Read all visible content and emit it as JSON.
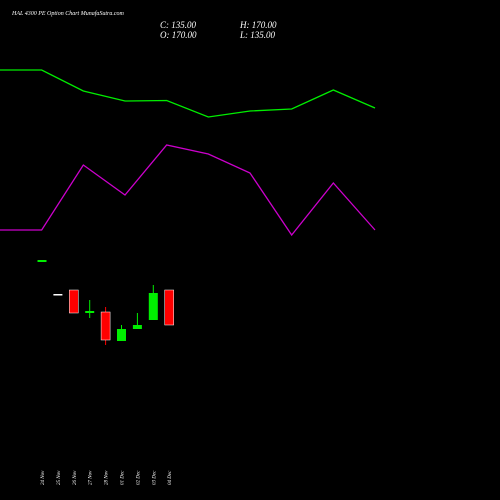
{
  "chart_data": [
    {
      "type": "candlestick",
      "title": "HAL 4300 PE Option Chart MunafaSutra.com",
      "close_label": "C: 135.00",
      "high_label": "H: 170.00",
      "open_label": "O: 170.00",
      "low_label": "L: 135.00",
      "categories": [
        "24 Nov",
        "25 Nov",
        "26 Nov",
        "27 Nov",
        "28 Nov",
        "01 Dec",
        "02 Dec",
        "03 Dec",
        "04 Dec"
      ],
      "open": [
        198,
        166,
        170,
        147,
        148,
        119,
        131,
        140,
        170
      ],
      "high": [
        200,
        166,
        170,
        160,
        153,
        135,
        147,
        175,
        170
      ],
      "low": [
        198,
        166,
        147,
        142,
        115,
        119,
        131,
        140,
        135
      ],
      "close": [
        200,
        166,
        147,
        149,
        120,
        131,
        135,
        167,
        135
      ],
      "up_color": "#00ee00",
      "down_color": "#ff0000",
      "flat_color": "#ffffff",
      "ylim": [
        -40,
        460
      ]
    },
    {
      "type": "line",
      "categories": [
        null,
        null,
        null,
        null,
        null,
        null,
        null,
        null,
        null,
        null
      ],
      "series": [
        {
          "color": "#00ee00",
          "values": [
            430,
            430,
            409,
            399,
            399.5,
            383,
            389,
            391,
            410,
            392
          ]
        },
        {
          "color": "#cc00cc",
          "values": [
            270,
            270,
            335,
            305,
            355,
            346,
            327,
            265,
            317,
            270
          ]
        }
      ],
      "ylim": [
        0,
        500
      ]
    }
  ]
}
